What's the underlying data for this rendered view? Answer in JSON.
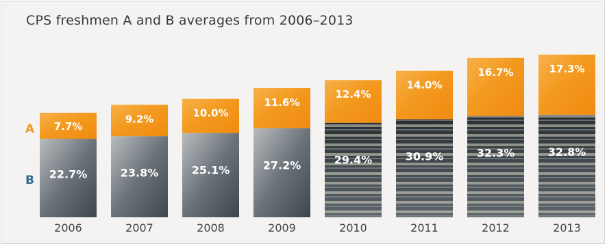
{
  "chart_data": {
    "type": "bar",
    "stacked": true,
    "title": "CPS freshmen A and B averages from 2006–2013",
    "categories": [
      "2006",
      "2007",
      "2008",
      "2009",
      "2010",
      "2011",
      "2012",
      "2013"
    ],
    "series": [
      {
        "name": "A",
        "values": [
          7.7,
          9.2,
          10.0,
          11.6,
          12.4,
          14.0,
          16.7,
          17.3
        ],
        "labels": [
          "7.7%",
          "9.2%",
          "10.0%",
          "11.6%",
          "12.4%",
          "14.0%",
          "16.7%",
          "17.3%"
        ]
      },
      {
        "name": "B",
        "values": [
          22.7,
          23.8,
          25.1,
          27.2,
          29.4,
          30.9,
          32.3,
          32.8
        ],
        "labels": [
          "22.7%",
          "23.8%",
          "25.1%",
          "27.2%",
          "29.4%",
          "30.9%",
          "32.3%",
          "32.8%"
        ]
      }
    ],
    "xlabel": "",
    "ylabel": "",
    "grid": false,
    "legend": "left"
  },
  "colors": {
    "a_series": "#f39a1f",
    "b_series": "#5a6470",
    "a_label": "#f39a1f",
    "b_label": "#2f6f8d"
  }
}
